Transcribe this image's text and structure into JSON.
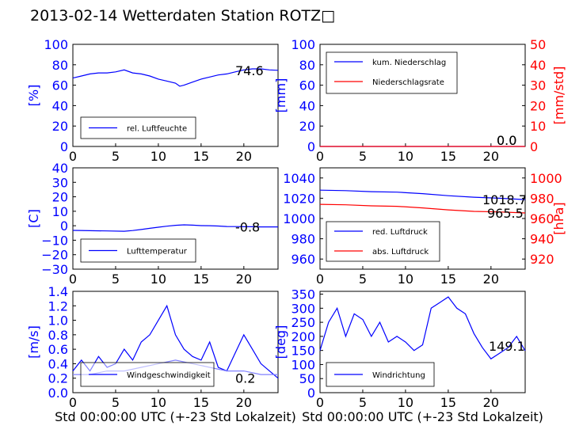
{
  "page_title": "2013-02-14 Wetterdaten Station ROTZ□",
  "colors": {
    "left_axis": "#0000ff",
    "right_axis": "#ff0000",
    "series_blue": "#0000ff",
    "series_red": "#ff0000",
    "series_light_blue": "#8080ff"
  },
  "xlabel": "Std 00:00:00 UTC (+-23 Std Lokalzeit)",
  "chart_data": [
    {
      "id": "humidity",
      "type": "line",
      "x_ticks": [
        "0",
        "5",
        "10",
        "15",
        "20"
      ],
      "xlim": [
        0,
        24
      ],
      "ylim": [
        0,
        100
      ],
      "y_ticks": [
        "0",
        "20",
        "40",
        "60",
        "80",
        "100"
      ],
      "ylabel": "[%]",
      "legend": "bottom-left",
      "last_value_label": "74.6",
      "series": [
        {
          "name": "rel. Luftfeuchte",
          "color": "#0000ff",
          "x": [
            0,
            1,
            2,
            3,
            4,
            5,
            6,
            7,
            8,
            9,
            10,
            11,
            12,
            12.5,
            13,
            14,
            15,
            16,
            17,
            18,
            19,
            20,
            21,
            22,
            23,
            24
          ],
          "y": [
            67,
            69,
            71,
            72,
            72,
            73,
            75,
            72,
            71,
            69,
            66,
            64,
            62,
            59,
            60,
            63,
            66,
            68,
            70,
            71,
            73,
            75,
            76,
            76,
            75,
            74.6
          ]
        }
      ]
    },
    {
      "id": "precipitation",
      "type": "line",
      "x_ticks": [
        "0",
        "5",
        "10",
        "15",
        "20"
      ],
      "xlim": [
        0,
        24
      ],
      "ylim": [
        0,
        100
      ],
      "y_ticks": [
        "0",
        "20",
        "40",
        "60",
        "80",
        "100"
      ],
      "ylabel": "[mm]",
      "ylim_right": [
        0,
        50
      ],
      "y_ticks_right": [
        "0",
        "10",
        "20",
        "30",
        "40",
        "50"
      ],
      "ylabel_right": "[mm/std]",
      "legend": "top-left",
      "last_value_label": "0.0",
      "last_value_label_2": "0.0",
      "series": [
        {
          "name": "kum. Niederschlag",
          "color": "#0000ff",
          "axis": "left",
          "x": [
            0,
            24
          ],
          "y": [
            0,
            0
          ]
        },
        {
          "name": "Niederschlagsrate",
          "color": "#ff0000",
          "axis": "right",
          "x": [
            0,
            24
          ],
          "y": [
            0,
            0
          ]
        }
      ]
    },
    {
      "id": "temperature",
      "type": "line",
      "x_ticks": [
        "0",
        "5",
        "10",
        "15",
        "20"
      ],
      "xlim": [
        0,
        24
      ],
      "ylim": [
        -30,
        40
      ],
      "y_ticks": [
        "−30",
        "−20",
        "−10",
        "0",
        "10",
        "20",
        "30",
        "40"
      ],
      "ylabel": "[C]",
      "legend": "bottom-left",
      "last_value_label": "-0.8",
      "series": [
        {
          "name": "Lufttemperatur",
          "color": "#0000ff",
          "x": [
            0,
            2,
            4,
            6,
            7,
            8,
            9,
            10,
            11,
            12,
            13,
            14,
            15,
            16,
            17,
            18,
            19,
            20,
            21,
            22,
            23,
            24
          ],
          "y": [
            -3.2,
            -3.4,
            -3.6,
            -3.8,
            -3.3,
            -2.6,
            -1.8,
            -1.0,
            -0.3,
            0.3,
            0.6,
            0.4,
            0.1,
            0.0,
            -0.2,
            -0.5,
            -0.6,
            -0.7,
            -0.7,
            -0.8,
            -0.8,
            -0.8
          ]
        }
      ]
    },
    {
      "id": "pressure",
      "type": "line",
      "x_ticks": [
        "0",
        "5",
        "10",
        "15",
        "20"
      ],
      "xlim": [
        0,
        24
      ],
      "ylim": [
        950,
        1050
      ],
      "y_ticks": [
        "960",
        "980",
        "1000",
        "1020",
        "1040"
      ],
      "ylim_right": [
        910,
        1010
      ],
      "y_ticks_right": [
        "920",
        "940",
        "960",
        "980",
        "1000"
      ],
      "ylabel_right": "[hPa]",
      "legend": "bottom-left",
      "last_value_label": "1018.7",
      "last_value_label_2": "965.5",
      "series": [
        {
          "name": "red. Luftdruck",
          "color": "#0000ff",
          "axis": "left",
          "x": [
            0,
            3,
            6,
            9,
            12,
            15,
            18,
            21,
            24
          ],
          "y": [
            1028,
            1027.5,
            1026.5,
            1026,
            1024.5,
            1022.5,
            1021,
            1020,
            1018.7
          ]
        },
        {
          "name": "abs. Luftdruck",
          "color": "#ff0000",
          "axis": "left",
          "x": [
            0,
            3,
            6,
            9,
            12,
            15,
            18,
            21,
            24
          ],
          "y": [
            1014,
            1013.5,
            1012.5,
            1012,
            1010.5,
            1008.5,
            1007,
            1006.5,
            1005.5
          ]
        }
      ]
    },
    {
      "id": "wind_speed",
      "type": "line",
      "x_ticks": [
        "0",
        "5",
        "10",
        "15",
        "20"
      ],
      "xlim": [
        0,
        24
      ],
      "ylim": [
        0,
        1.4
      ],
      "y_ticks": [
        "0.0",
        "0.2",
        "0.4",
        "0.6",
        "0.8",
        "1.0",
        "1.2",
        "1.4"
      ],
      "ylabel": "[m/s]",
      "legend": "bottom-left",
      "last_value_label": "0.2",
      "series": [
        {
          "name": "Windgeschwindigkeit",
          "color": "#0000ff",
          "x": [
            0,
            1,
            2,
            3,
            4,
            5,
            6,
            7,
            8,
            9,
            10,
            11,
            12,
            13,
            14,
            15,
            16,
            17,
            18,
            19,
            20,
            21,
            22,
            23,
            24
          ],
          "y": [
            0.3,
            0.45,
            0.3,
            0.5,
            0.35,
            0.4,
            0.6,
            0.45,
            0.7,
            0.8,
            1.0,
            1.2,
            0.8,
            0.6,
            0.5,
            0.45,
            0.7,
            0.35,
            0.3,
            0.55,
            0.8,
            0.6,
            0.4,
            0.3,
            0.2
          ]
        },
        {
          "name": "",
          "color": "#8080ff",
          "x": [
            0,
            2,
            4,
            6,
            8,
            10,
            12,
            14,
            16,
            18,
            20,
            22,
            24
          ],
          "y": [
            0.25,
            0.25,
            0.3,
            0.3,
            0.35,
            0.4,
            0.45,
            0.4,
            0.35,
            0.3,
            0.3,
            0.25,
            0.25
          ]
        }
      ]
    },
    {
      "id": "wind_direction",
      "type": "line",
      "x_ticks": [
        "0",
        "5",
        "10",
        "15",
        "20"
      ],
      "xlim": [
        0,
        24
      ],
      "ylim": [
        0,
        360
      ],
      "y_ticks": [
        "0",
        "50",
        "100",
        "150",
        "200",
        "250",
        "300",
        "350"
      ],
      "ylabel": "[deg]",
      "legend": "bottom-left",
      "last_value_label": "149.1",
      "series": [
        {
          "name": "Windrichtung",
          "color": "#0000ff",
          "x": [
            0,
            1,
            2,
            3,
            4,
            5,
            6,
            7,
            8,
            9,
            10,
            11,
            12,
            13,
            14,
            15,
            16,
            17,
            18,
            19,
            20,
            21,
            22,
            23,
            24
          ],
          "y": [
            150,
            250,
            300,
            200,
            280,
            260,
            200,
            250,
            180,
            200,
            180,
            150,
            170,
            300,
            320,
            340,
            300,
            280,
            210,
            160,
            120,
            140,
            160,
            200,
            149.1
          ]
        }
      ]
    }
  ]
}
